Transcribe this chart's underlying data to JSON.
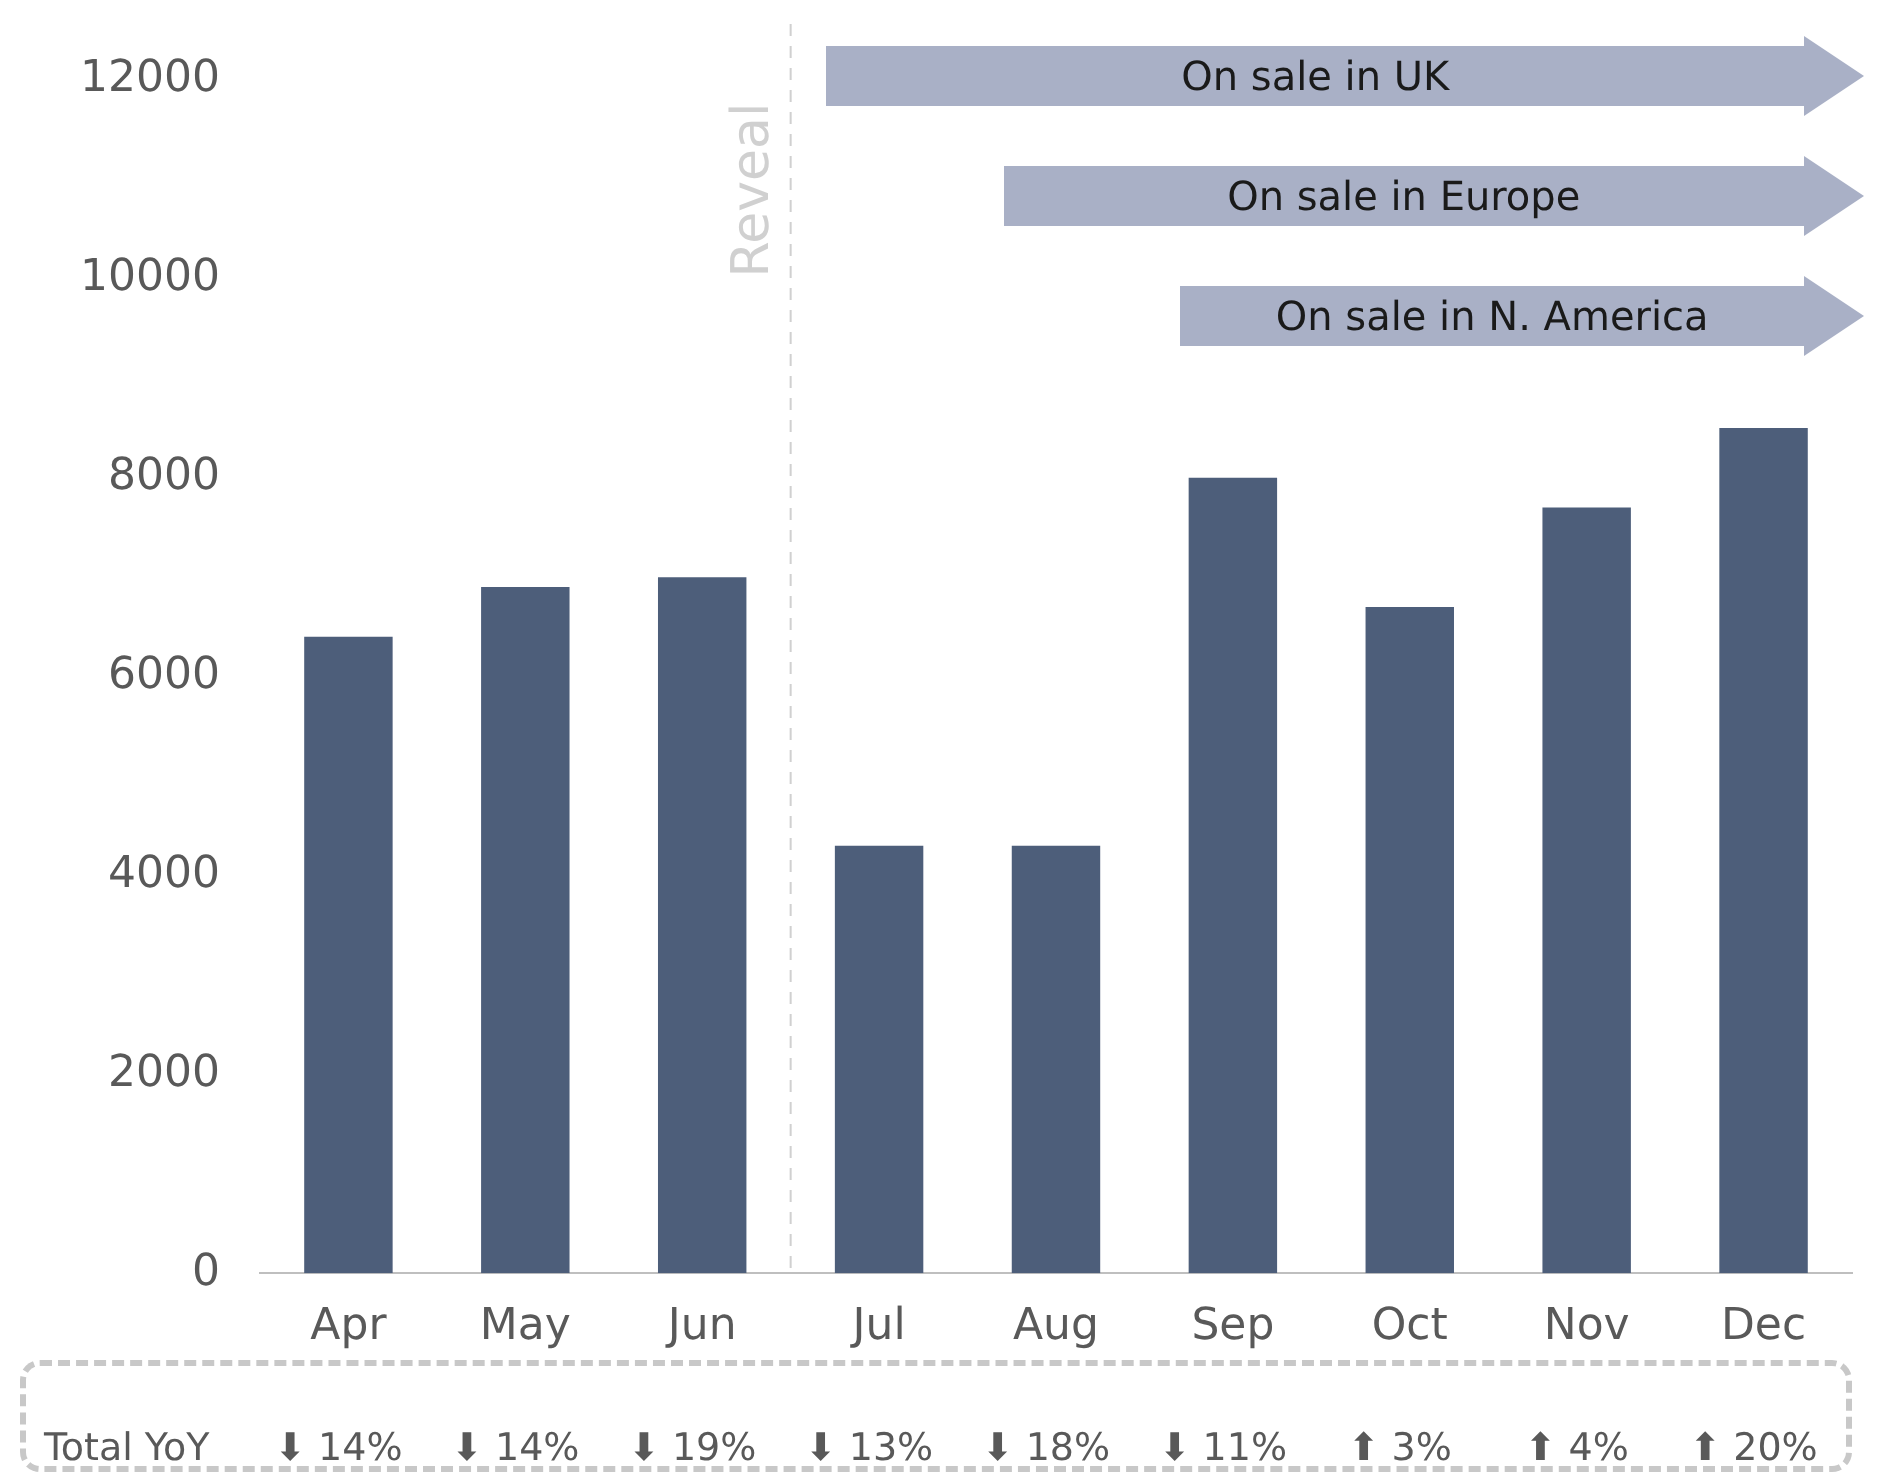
{
  "chart_data": {
    "type": "bar",
    "categories": [
      "Apr",
      "May",
      "Jun",
      "Jul",
      "Aug",
      "Sep",
      "Oct",
      "Nov",
      "Dec"
    ],
    "values": [
      6400,
      6900,
      7000,
      4300,
      4300,
      8000,
      6700,
      7700,
      8500
    ],
    "color": "#4d5e7a",
    "ylim": [
      0,
      12000
    ],
    "yticks": [
      0,
      2000,
      4000,
      6000,
      8000,
      10000,
      12000
    ],
    "grid": false,
    "legend": false,
    "annotations": [
      "Reveal",
      "On sale in UK",
      "On sale in Europe",
      "On sale in N. America",
      "Total YoY",
      "⬇ 14%",
      "⬇ 14%",
      "⬇ 19%",
      "⬇ 13%",
      "⬇ 18%",
      "⬇ 11%",
      "⬆ 3%",
      "⬆ 4%",
      "⬆ 20%"
    ]
  }
}
